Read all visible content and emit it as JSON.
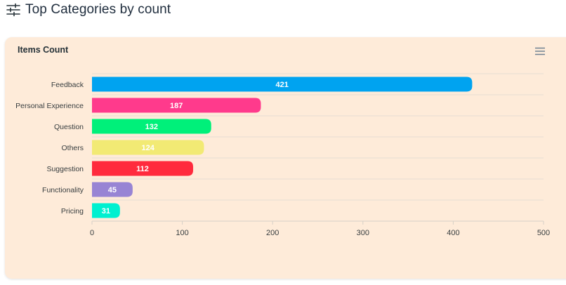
{
  "header": {
    "title": "Top Categories by count",
    "icon": "sliders-icon"
  },
  "card": {
    "title": "Items Count",
    "menu_icon": "hamburger-menu-icon",
    "background": "#feebd9"
  },
  "chart_data": {
    "type": "bar",
    "orientation": "horizontal",
    "title": "Items Count",
    "categories": [
      "Feedback",
      "Personal Experience",
      "Question",
      "Others",
      "Suggestion",
      "Functionality",
      "Pricing"
    ],
    "values": [
      421,
      187,
      132,
      124,
      112,
      45,
      31
    ],
    "colors": [
      "#00a3f0",
      "#ff3a8c",
      "#00f07a",
      "#f2ea74",
      "#ff2a3d",
      "#9884d4",
      "#00f0d0"
    ],
    "xlim": [
      0,
      500
    ],
    "xticks": [
      0,
      100,
      200,
      300,
      400,
      500
    ],
    "xlabel": "",
    "ylabel": "",
    "data_labels": true,
    "grid": "horizontal lines",
    "legend": "none"
  }
}
